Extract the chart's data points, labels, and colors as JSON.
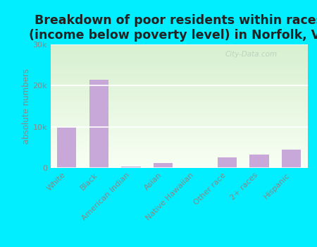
{
  "title": "Breakdown of poor residents within races\n(income below poverty level) in Norfolk, VA",
  "categories": [
    "White",
    "Black",
    "American Indian",
    "Asian",
    "Native Hawaiian",
    "Other race",
    "2+ races",
    "Hispanic"
  ],
  "values": [
    10000,
    21500,
    300,
    1200,
    50,
    2500,
    3200,
    4500
  ],
  "bar_color": "#c8a8d8",
  "ylabel": "absolute numbers",
  "ylim": [
    0,
    30000
  ],
  "yticks": [
    0,
    10000,
    20000,
    30000
  ],
  "ytick_labels": [
    "0",
    "10k",
    "20k",
    "30k"
  ],
  "grad_top": "#d8f0d0",
  "grad_bottom": "#f8fff4",
  "outer_bg": "#00eeff",
  "title_color": "#222222",
  "label_color": "#888888",
  "title_fontsize": 12.5,
  "axis_label_fontsize": 8.5,
  "tick_fontsize": 8,
  "watermark": "City-Data.com",
  "watermark_color": "#bbccbb"
}
